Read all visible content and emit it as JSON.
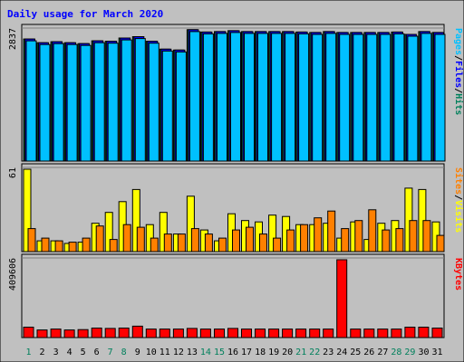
{
  "colors": {
    "background": "#ffffff",
    "frame": "#c0c0c0",
    "plot_bg": "#c0c0c0",
    "hits": "#00805c",
    "files": "#0000ff",
    "pages": "#00c0ff",
    "visits": "#ffff00",
    "sites": "#ff8000",
    "kbytes": "#ff0000",
    "weekday_label": "#000000",
    "weekend_label": "#00805c",
    "title": "#0000ff"
  },
  "chart_data": [
    {
      "type": "bar",
      "title": "Daily usage for March 2020",
      "panel": "hits-files-pages",
      "ymax_label": "2837",
      "ymax": 2837,
      "legend": [
        "Pages",
        "/",
        "Files",
        "/",
        "Hits"
      ],
      "categories": [
        "1",
        "2",
        "3",
        "4",
        "5",
        "6",
        "7",
        "8",
        "9",
        "10",
        "11",
        "12",
        "13",
        "14",
        "15",
        "16",
        "17",
        "18",
        "19",
        "20",
        "21",
        "22",
        "23",
        "24",
        "25",
        "26",
        "27",
        "28",
        "29",
        "30",
        "31"
      ],
      "weekend_days": [
        "1",
        "7",
        "8",
        "14",
        "15",
        "21",
        "22",
        "28",
        "29"
      ],
      "series": [
        {
          "name": "Hits",
          "values": [
            2640,
            2560,
            2580,
            2560,
            2540,
            2600,
            2590,
            2660,
            2690,
            2590,
            2420,
            2400,
            2840,
            2790,
            2800,
            2820,
            2800,
            2800,
            2800,
            2800,
            2790,
            2780,
            2800,
            2780,
            2780,
            2780,
            2780,
            2790,
            2740,
            2800,
            2780
          ]
        },
        {
          "name": "Files",
          "values": [
            2640,
            2560,
            2580,
            2560,
            2540,
            2600,
            2590,
            2660,
            2690,
            2590,
            2420,
            2400,
            2840,
            2790,
            2800,
            2820,
            2800,
            2800,
            2800,
            2800,
            2790,
            2780,
            2800,
            2780,
            2780,
            2780,
            2780,
            2790,
            2740,
            2800,
            2780
          ]
        },
        {
          "name": "Pages",
          "values": [
            2600,
            2520,
            2540,
            2520,
            2500,
            2560,
            2550,
            2620,
            2650,
            2550,
            2380,
            2360,
            2800,
            2750,
            2760,
            2780,
            2760,
            2760,
            2760,
            2760,
            2750,
            2740,
            2760,
            2740,
            2740,
            2740,
            2740,
            2750,
            2700,
            2760,
            2740
          ]
        }
      ]
    },
    {
      "type": "bar",
      "panel": "visits-sites",
      "ymax_label": "61",
      "ymax": 61,
      "legend": [
        "Sites",
        "/",
        "Visits"
      ],
      "categories": [
        "1",
        "2",
        "3",
        "4",
        "5",
        "6",
        "7",
        "8",
        "9",
        "10",
        "11",
        "12",
        "13",
        "14",
        "15",
        "16",
        "17",
        "18",
        "19",
        "20",
        "21",
        "22",
        "23",
        "24",
        "25",
        "26",
        "27",
        "28",
        "29",
        "30",
        "31"
      ],
      "series": [
        {
          "name": "Visits",
          "values": [
            61,
            8,
            8,
            6,
            7,
            21,
            29,
            37,
            46,
            20,
            29,
            13,
            41,
            16,
            8,
            28,
            23,
            22,
            27,
            26,
            20,
            20,
            21,
            10,
            22,
            9,
            21,
            23,
            47,
            46,
            22
          ]
        },
        {
          "name": "Sites",
          "values": [
            17,
            10,
            8,
            7,
            10,
            19,
            9,
            20,
            18,
            10,
            13,
            13,
            17,
            13,
            10,
            16,
            18,
            13,
            10,
            16,
            20,
            25,
            30,
            17,
            23,
            31,
            16,
            17,
            23,
            23,
            12
          ]
        }
      ]
    },
    {
      "type": "bar",
      "panel": "kbytes",
      "ymax_label": "409606",
      "ymax": 409606,
      "legend": [
        "KBytes"
      ],
      "categories": [
        "1",
        "2",
        "3",
        "4",
        "5",
        "6",
        "7",
        "8",
        "9",
        "10",
        "11",
        "12",
        "13",
        "14",
        "15",
        "16",
        "17",
        "18",
        "19",
        "20",
        "21",
        "22",
        "23",
        "24",
        "25",
        "26",
        "27",
        "28",
        "29",
        "30",
        "31"
      ],
      "series": [
        {
          "name": "KBytes",
          "values": [
            55000,
            40000,
            45000,
            40000,
            42000,
            50000,
            48000,
            50000,
            60000,
            45000,
            45000,
            45000,
            48000,
            45000,
            45000,
            48000,
            45000,
            45000,
            45000,
            45000,
            45000,
            45000,
            45000,
            409606,
            45000,
            45000,
            45000,
            45000,
            55000,
            55000,
            50000
          ]
        }
      ]
    }
  ]
}
